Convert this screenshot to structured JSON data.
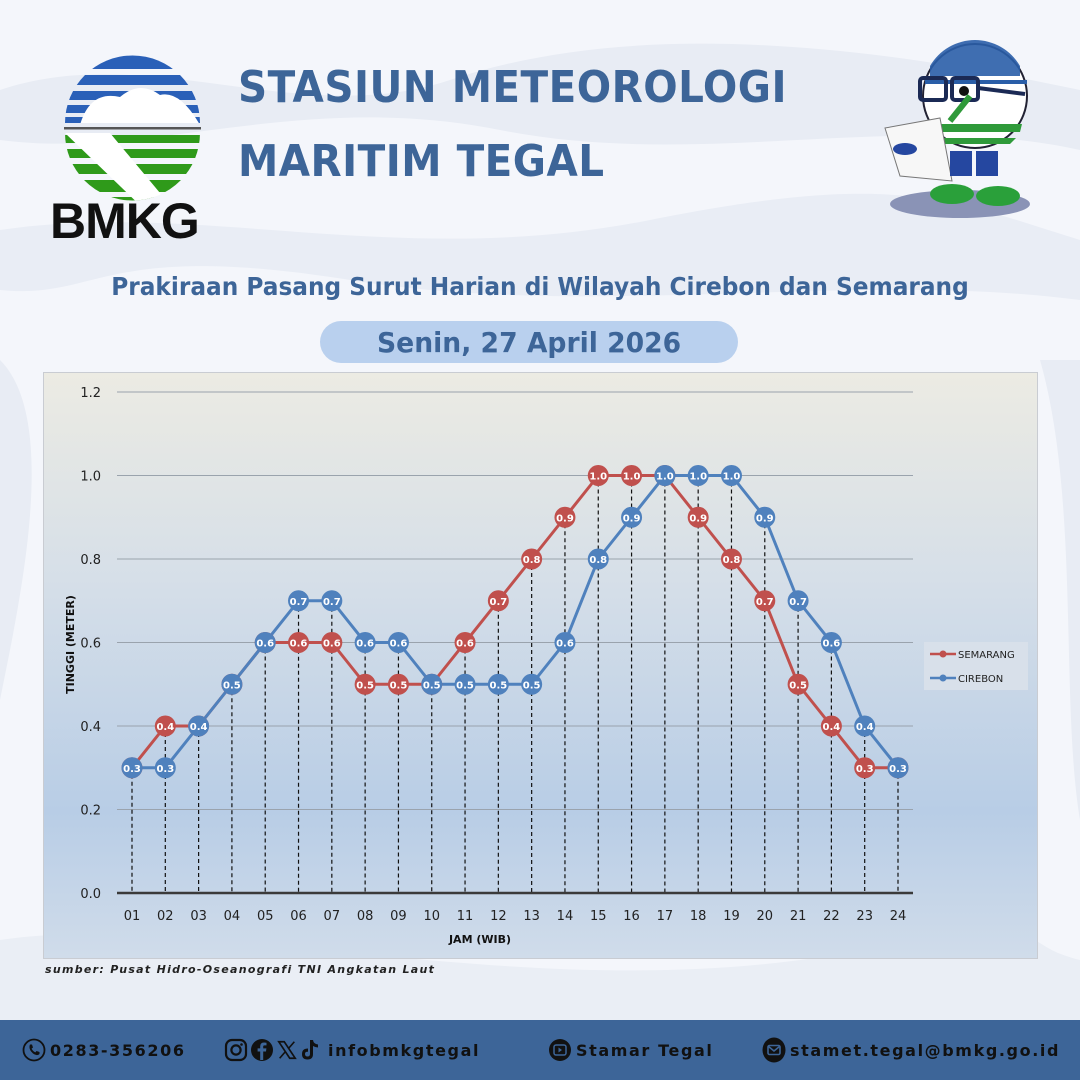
{
  "header": {
    "logo_text": "BMKG",
    "title_line1": "STASIUN METEOROLOGI",
    "title_line2": "MARITIM TEGAL"
  },
  "subtitle": "Prakiraan Pasang Surut Harian di Wilayah Cirebon dan Semarang",
  "date": "Senin, 27 April 2026",
  "source": "sumber: Pusat Hidro-Oseanografi TNI Angkatan Laut",
  "footer": {
    "phone": "0283-356206",
    "social_handle": "infobmkgtegal",
    "youtube": "Stamar Tegal",
    "email": "stamet.tegal@bmkg.go.id",
    "icons": [
      "phone-icon",
      "instagram-icon",
      "facebook-icon",
      "x-icon",
      "tiktok-icon",
      "youtube-icon",
      "email-icon"
    ]
  },
  "colors": {
    "title_blue": "#3d6598",
    "semarang": "#c0504d",
    "cirebon": "#4f81bd",
    "footer_bg": "#3d6598",
    "date_pill": "#b9d0ee"
  },
  "chart_data": {
    "type": "line",
    "title": "Prakiraan Pasang Surut Harian di Wilayah Cirebon dan Semarang",
    "xlabel": "JAM (WIB)",
    "ylabel": "TINGGI (METER)",
    "ylim": [
      0.0,
      1.2
    ],
    "yticks": [
      "0.0",
      "0.2",
      "0.4",
      "0.6",
      "0.8",
      "1.0",
      "1.2"
    ],
    "grid": true,
    "legend_position": "right",
    "categories": [
      "01",
      "02",
      "03",
      "04",
      "05",
      "06",
      "07",
      "08",
      "09",
      "10",
      "11",
      "12",
      "13",
      "14",
      "15",
      "16",
      "17",
      "18",
      "19",
      "20",
      "21",
      "22",
      "23",
      "24"
    ],
    "series": [
      {
        "name": "SEMARANG",
        "color": "#c0504d",
        "values": [
          0.3,
          0.4,
          0.4,
          0.5,
          0.6,
          0.6,
          0.6,
          0.5,
          0.5,
          0.5,
          0.6,
          0.7,
          0.8,
          0.9,
          1.0,
          1.0,
          1.0,
          0.9,
          0.8,
          0.7,
          0.5,
          0.4,
          0.3,
          0.3
        ]
      },
      {
        "name": "CIREBON",
        "color": "#4f81bd",
        "values": [
          0.3,
          0.3,
          0.4,
          0.5,
          0.6,
          0.7,
          0.7,
          0.6,
          0.6,
          0.5,
          0.5,
          0.5,
          0.5,
          0.6,
          0.8,
          0.9,
          1.0,
          1.0,
          1.0,
          0.9,
          0.7,
          0.6,
          0.4,
          0.3
        ]
      }
    ]
  }
}
